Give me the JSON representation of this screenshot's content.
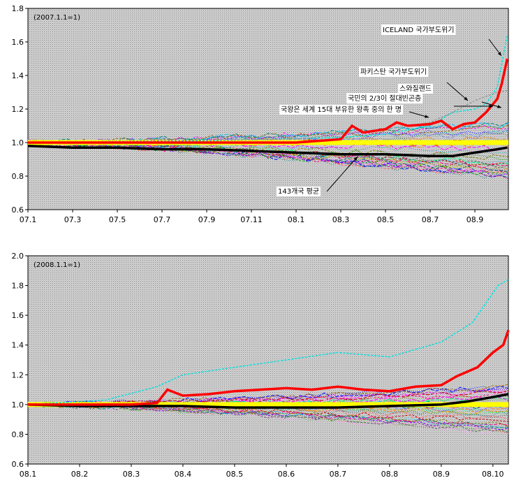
{
  "chart_data": [
    {
      "type": "line",
      "note": "(2007.1.1=1)",
      "x_ticks": [
        "07.1",
        "07.3",
        "07.5",
        "07.7",
        "07.9",
        "07.11",
        "08.1",
        "08.3",
        "08.5",
        "08.7",
        "08.9"
      ],
      "x_range": [
        0,
        21.5
      ],
      "y_ticks": [
        "0.6",
        "0.8",
        "1.0",
        "1.2",
        "1.4",
        "1.6",
        "1.8"
      ],
      "ylim": [
        0.6,
        1.8
      ],
      "grid": false,
      "background": "#c4c4c4",
      "background_pattern": "dotted",
      "reference_line": {
        "value": 1.0,
        "color": "#ffff00"
      },
      "series": [
        {
          "role": "highlight-red",
          "color": "#ff0000",
          "points": [
            [
              0,
              1.0
            ],
            [
              4,
              1.0
            ],
            [
              8,
              1.0
            ],
            [
              12,
              1.0
            ],
            [
              14,
              1.02
            ],
            [
              14.5,
              1.1
            ],
            [
              15,
              1.06
            ],
            [
              16,
              1.08
            ],
            [
              16.5,
              1.12
            ],
            [
              17,
              1.1
            ],
            [
              18,
              1.11
            ],
            [
              18.5,
              1.13
            ],
            [
              19,
              1.08
            ],
            [
              19.5,
              1.11
            ],
            [
              20,
              1.12
            ],
            [
              20.5,
              1.18
            ],
            [
              21,
              1.26
            ],
            [
              21.2,
              1.35
            ],
            [
              21.45,
              1.5
            ]
          ]
        },
        {
          "role": "cyan",
          "color": "#00e0e0",
          "points": [
            [
              0,
              1.0
            ],
            [
              8,
              1.01
            ],
            [
              14,
              1.03
            ],
            [
              16,
              1.05
            ],
            [
              18,
              1.1
            ],
            [
              19,
              1.18
            ],
            [
              20,
              1.2
            ],
            [
              20.5,
              1.23
            ],
            [
              21,
              1.33
            ],
            [
              21.45,
              1.64
            ]
          ]
        },
        {
          "role": "gray",
          "color": "#999999",
          "points": [
            [
              0,
              1.0
            ],
            [
              12,
              1.02
            ],
            [
              16,
              1.08
            ],
            [
              18,
              1.12
            ],
            [
              19,
              1.18
            ],
            [
              20,
              1.25
            ],
            [
              21,
              1.3
            ],
            [
              21.45,
              1.31
            ]
          ]
        },
        {
          "role": "average-black",
          "color": "#000000",
          "points": [
            [
              0,
              0.98
            ],
            [
              2,
              0.97
            ],
            [
              4,
              0.97
            ],
            [
              6,
              0.96
            ],
            [
              8,
              0.96
            ],
            [
              10,
              0.95
            ],
            [
              12,
              0.94
            ],
            [
              14,
              0.93
            ],
            [
              16,
              0.93
            ],
            [
              18,
              0.92
            ],
            [
              19,
              0.92
            ],
            [
              20,
              0.94
            ],
            [
              21,
              0.96
            ],
            [
              21.45,
              0.97
            ]
          ]
        }
      ],
      "annotations": [
        {
          "text": "ICELAND 국가부도위기",
          "value_x": 18.8,
          "value_y": 1.66
        },
        {
          "text": "파키스탄 국가부도위기",
          "value_x": 15.3,
          "value_y": 1.41
        },
        {
          "text": "스와질랜드",
          "value_x": 17.4,
          "value_y": 1.33
        },
        {
          "text": "국민의 2/3이 절대빈곤층",
          "value_x": 16.2,
          "value_y": 1.27
        },
        {
          "text": "국왕은 세계 15대 부유한 왕족 중의 한 명",
          "value_x": 14.3,
          "value_y": 1.2
        },
        {
          "text": "143개국 평균",
          "value_x": 14.8,
          "value_y": 0.72
        }
      ]
    },
    {
      "type": "line",
      "note": "(2008.1.1=1)",
      "x_ticks": [
        "08.1",
        "08.2",
        "08.3",
        "08.4",
        "08.5",
        "08.6",
        "08.7",
        "08.8",
        "08.9",
        "08.10"
      ],
      "x_range": [
        0,
        9.3
      ],
      "y_ticks": [
        "0.6",
        "0.8",
        "1.0",
        "1.2",
        "1.4",
        "1.6",
        "1.8",
        "2.0"
      ],
      "ylim": [
        0.6,
        2.0
      ],
      "grid": false,
      "background": "#c4c4c4",
      "background_pattern": "dotted",
      "reference_line": {
        "value": 1.0,
        "color": "#ffff00"
      },
      "series": [
        {
          "role": "highlight-red",
          "color": "#ff0000",
          "points": [
            [
              0,
              1.0
            ],
            [
              2,
              1.0
            ],
            [
              2.5,
              1.01
            ],
            [
              2.7,
              1.1
            ],
            [
              3,
              1.06
            ],
            [
              3.5,
              1.07
            ],
            [
              4,
              1.09
            ],
            [
              4.5,
              1.1
            ],
            [
              5,
              1.11
            ],
            [
              5.5,
              1.1
            ],
            [
              6,
              1.12
            ],
            [
              6.5,
              1.1
            ],
            [
              7,
              1.09
            ],
            [
              7.5,
              1.12
            ],
            [
              8,
              1.13
            ],
            [
              8.3,
              1.19
            ],
            [
              8.7,
              1.25
            ],
            [
              9,
              1.35
            ],
            [
              9.2,
              1.4
            ],
            [
              9.3,
              1.5
            ]
          ]
        },
        {
          "role": "cyan",
          "color": "#00e0e0",
          "points": [
            [
              0,
              1.0
            ],
            [
              1.5,
              1.03
            ],
            [
              2.5,
              1.12
            ],
            [
              3,
              1.2
            ],
            [
              4,
              1.25
            ],
            [
              5,
              1.3
            ],
            [
              6,
              1.35
            ],
            [
              7,
              1.32
            ],
            [
              8,
              1.42
            ],
            [
              8.6,
              1.55
            ],
            [
              9.1,
              1.8
            ],
            [
              9.3,
              1.84
            ]
          ]
        },
        {
          "role": "average-black",
          "color": "#000000",
          "points": [
            [
              0,
              1.0
            ],
            [
              1,
              0.99
            ],
            [
              2,
              0.99
            ],
            [
              3,
              0.99
            ],
            [
              4,
              0.98
            ],
            [
              5,
              0.98
            ],
            [
              6,
              0.98
            ],
            [
              7,
              0.99
            ],
            [
              8,
              1.0
            ],
            [
              8.5,
              1.02
            ],
            [
              9,
              1.05
            ],
            [
              9.3,
              1.07
            ]
          ]
        }
      ]
    }
  ]
}
